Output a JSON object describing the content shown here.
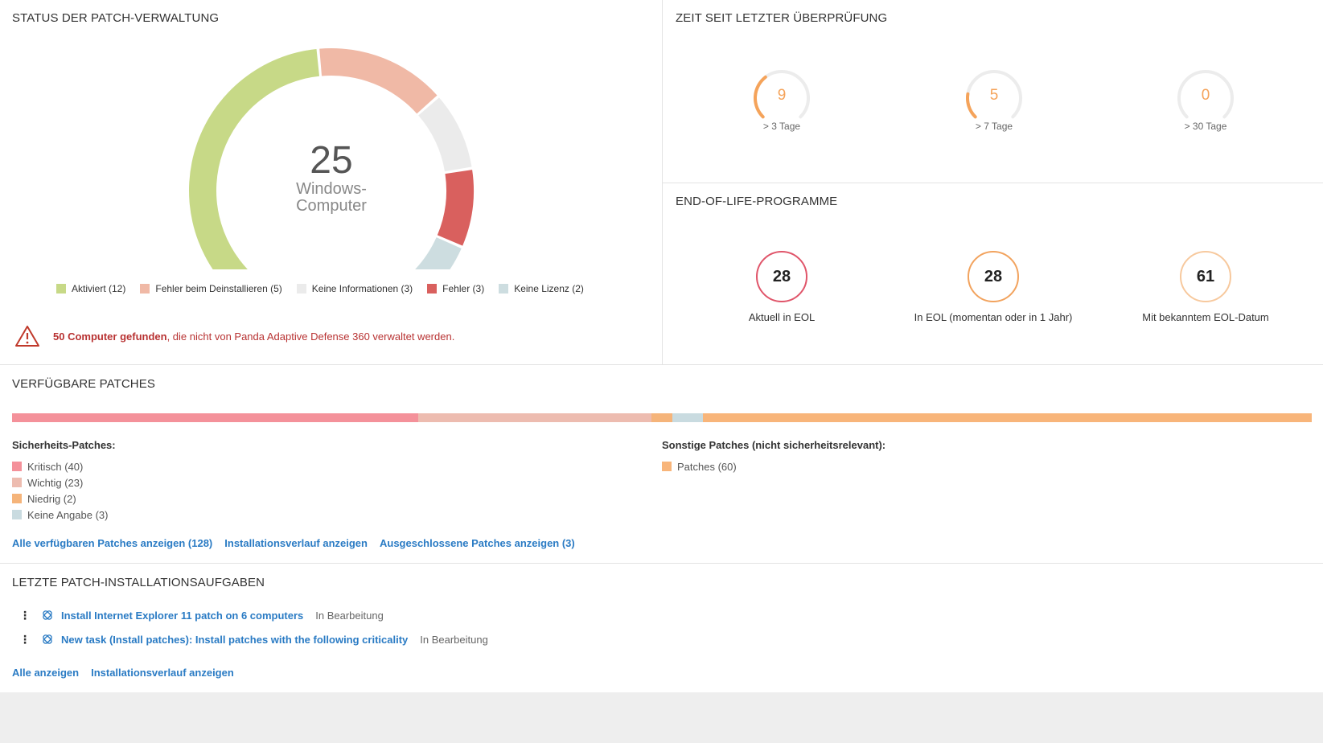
{
  "patch_status": {
    "title": "STATUS DER PATCH-VERWALTUNG",
    "center_count": "25",
    "center_label": "Windows-\nComputer",
    "legend": [
      {
        "label": "Aktiviert (12)",
        "color": "#c7d987",
        "value": 12
      },
      {
        "label": "Fehler beim Deinstallieren (5)",
        "color": "#f0b9a6",
        "value": 5
      },
      {
        "label": "Keine Informationen (3)",
        "color": "#ebebeb",
        "value": 3
      },
      {
        "label": "Fehler (3)",
        "color": "#d9605e",
        "value": 3
      },
      {
        "label": "Keine Lizenz (2)",
        "color": "#cddde0",
        "value": 2
      }
    ],
    "warning_bold": "50 Computer gefunden",
    "warning_rest": ", die nicht von Panda Adaptive Defense 360 verwaltet werden.",
    "warning_icon": "warning-triangle-icon"
  },
  "last_check": {
    "title": "ZEIT SEIT LETZTER ÜBERPRÜFUNG",
    "gauges": [
      {
        "value": "9",
        "label": "> 3 Tage",
        "fraction": 0.36
      },
      {
        "value": "5",
        "label": "> 7 Tage",
        "fraction": 0.2
      },
      {
        "value": "0",
        "label": "> 30 Tage",
        "fraction": 0
      }
    ],
    "accent": "#f5a35a"
  },
  "eol": {
    "title": "END-OF-LIFE-PROGRAMME",
    "items": [
      {
        "value": "28",
        "label": "Aktuell in EOL",
        "color": "#e0556a"
      },
      {
        "value": "28",
        "label": "In EOL (momentan oder in 1 Jahr)",
        "color": "#f2a35e"
      },
      {
        "value": "61",
        "label": "Mit bekanntem EOL-Datum",
        "color": "#f7c99e"
      }
    ]
  },
  "available_patches": {
    "title": "VERFÜGBARE PATCHES",
    "bar": [
      {
        "name": "Kritisch",
        "value": 40,
        "color": "#f4919a"
      },
      {
        "name": "Wichtig",
        "value": 23,
        "color": "#edbcb0"
      },
      {
        "name": "Niedrig",
        "value": 2,
        "color": "#f5b47a"
      },
      {
        "name": "Keine Angabe",
        "value": 3,
        "color": "#c9dbe0"
      },
      {
        "name": "Patches",
        "value": 60,
        "color": "#f8b57a"
      }
    ],
    "security_heading": "Sicherheits-Patches:",
    "security_items": [
      {
        "label": "Kritisch (40)",
        "color": "#f4919a"
      },
      {
        "label": "Wichtig (23)",
        "color": "#edbcb0"
      },
      {
        "label": "Niedrig (2)",
        "color": "#f5b47a"
      },
      {
        "label": "Keine Angabe (3)",
        "color": "#c9dbe0"
      }
    ],
    "other_heading": "Sonstige Patches (nicht sicherheitsrelevant):",
    "other_items": [
      {
        "label": "Patches (60)",
        "color": "#f8b57a"
      }
    ],
    "links": [
      "Alle verfügbaren Patches anzeigen (128)",
      "Installationsverlauf anzeigen",
      "Ausgeschlossene Patches anzeigen (3)"
    ]
  },
  "recent_tasks": {
    "title": "LETZTE PATCH-INSTALLATIONSAUFGABEN",
    "tasks": [
      {
        "name": "Install Internet Explorer 11 patch on 6 computers",
        "status": "In Bearbeitung"
      },
      {
        "name": "New task (Install patches): Install patches with the following criticality",
        "status": "In Bearbeitung"
      }
    ],
    "links": [
      "Alle anzeigen",
      "Installationsverlauf anzeigen"
    ]
  }
}
